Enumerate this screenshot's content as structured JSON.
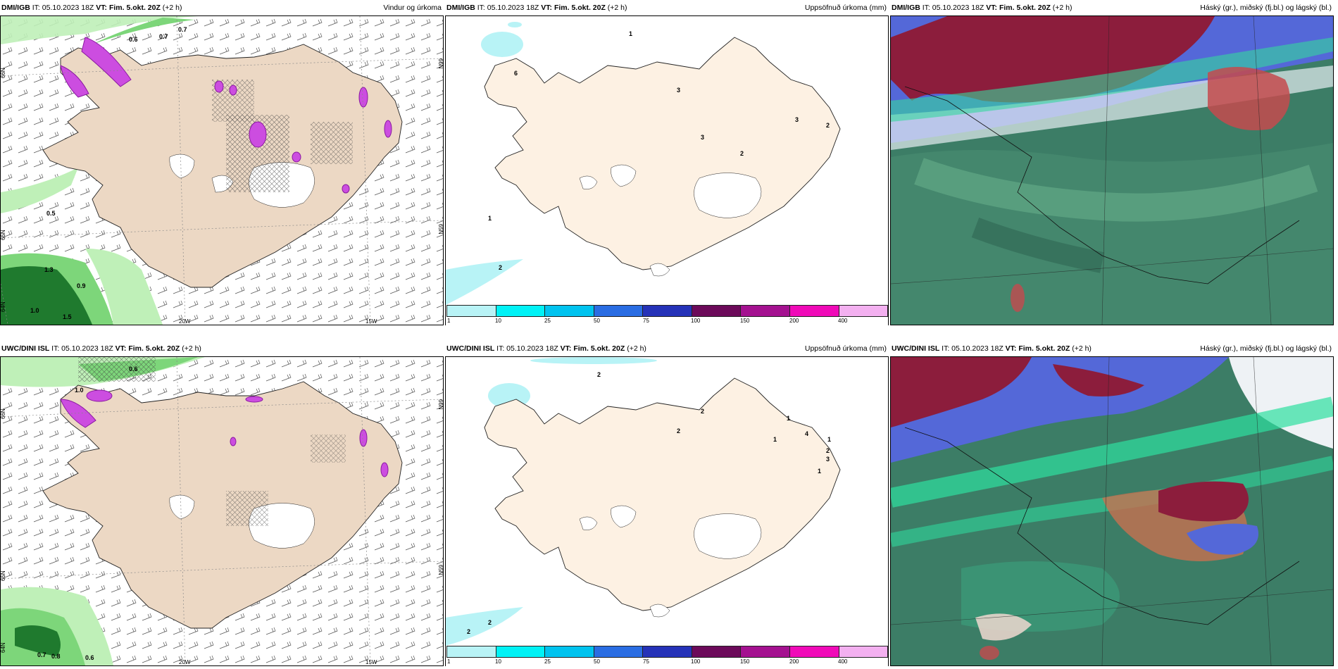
{
  "panels": {
    "p1": {
      "model": "DMI/IGB",
      "it": "IT: 05.10.2023 18Z",
      "vt_label": "VT:",
      "vt": "Fim. 5.okt. 20Z",
      "offset": "(+2 h)",
      "title": "Vindur og úrkoma",
      "labels": [
        "0.6",
        "0.7",
        "0.7",
        "0.5",
        "1.3",
        "0.9",
        "1.0",
        "1.5"
      ],
      "grid": {
        "lat_n66": "66N",
        "lat_n65": "65N",
        "lat_n64": "64N",
        "lon_20w": "20W",
        "lon_15w": "15W"
      }
    },
    "p2": {
      "model": "DMI/IGB",
      "it": "IT: 05.10.2023 18Z",
      "vt_label": "VT:",
      "vt": "Fim. 5.okt. 20Z",
      "offset": "(+2 h)",
      "title": "Uppsöfnuð úrkoma (mm)",
      "labels": [
        "1",
        "3",
        "3",
        "3",
        "2",
        "2",
        "1",
        "2",
        "6"
      ]
    },
    "p3": {
      "model": "DMI/IGB",
      "it": "IT: 05.10.2023 18Z",
      "vt_label": "VT:",
      "vt": "Fim. 5.okt. 20Z",
      "offset": "(+2 h)",
      "title": "Háský (gr.), miðský (fj.bl.) og lágský (bl.)"
    },
    "p4": {
      "model": "UWC/DINI ISL",
      "it": "IT: 05.10.2023 18Z",
      "vt_label": "VT:",
      "vt": "Fim. 5.okt. 20Z",
      "offset": "(+2 h)",
      "title": "",
      "labels": [
        "0.6",
        "1.0",
        "0.7",
        "0.8",
        "0.6"
      ],
      "grid": {
        "lat_n66": "66N",
        "lat_n65": "65N",
        "lat_n64": "64N",
        "lon_20w": "20W",
        "lon_15w": "15W"
      }
    },
    "p5": {
      "model": "UWC/DINI ISL",
      "it": "IT: 05.10.2023 18Z",
      "vt_label": "VT:",
      "vt": "Fim. 5.okt. 20Z",
      "offset": "(+2 h)",
      "title": "Uppsöfnuð úrkoma (mm)",
      "labels": [
        "2",
        "2",
        "2",
        "1",
        "1",
        "4",
        "1",
        "2",
        "3",
        "1",
        "2",
        "2"
      ]
    },
    "p6": {
      "model": "UWC/DINI ISL",
      "it": "IT: 05.10.2023 18Z",
      "vt_label": "VT:",
      "vt": "Fim. 5.okt. 20Z",
      "offset": "(+2 h)",
      "title": "Háský (gr.), miðský (fj.bl.) og lágský (bl.)"
    }
  },
  "legend": {
    "ticks": [
      "1",
      "10",
      "25",
      "50",
      "75",
      "100",
      "150",
      "200",
      "400"
    ],
    "colors": [
      "#b8f3f6",
      "#00f2f6",
      "#00c3ef",
      "#2a6de3",
      "#2532b8",
      "#6c0a5a",
      "#a41190",
      "#f00ab8",
      "#f3b0f0"
    ]
  },
  "colors": {
    "land": "#ecd8c4",
    "land_plain": "#fdf1e3",
    "sea": "#ffffff",
    "precip_green": "#7dd67a",
    "precip_dark": "#1f7a2e",
    "precip_magenta": "#cc4de0",
    "cloud_red": "#8c1d3c",
    "cloud_blue": "#5468d8",
    "cloud_green": "#3a7a63"
  }
}
